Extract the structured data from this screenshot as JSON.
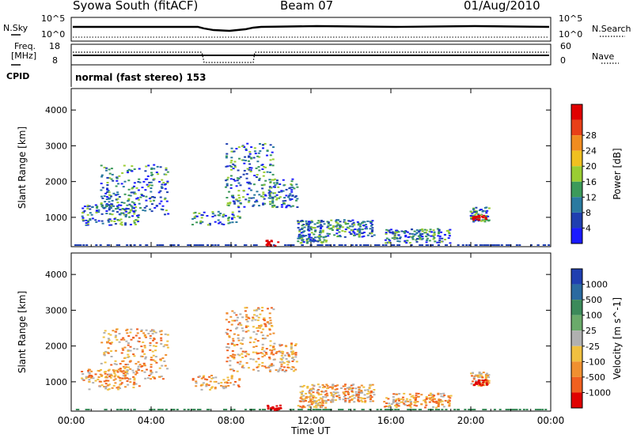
{
  "header": {
    "station": "Syowa South (fitACF)",
    "beam": "Beam 07",
    "date": "01/Aug/2010"
  },
  "status": {
    "nsky_label": "N.Sky",
    "nsearch_label": "N.Search",
    "freq_label_top": "Freq.",
    "freq_label_unit": "[MHz]",
    "nave_label": "Nave",
    "cpid_label": "CPID",
    "log_left_hi": "10^5",
    "log_left_lo": "10^0",
    "log_right_hi": "10^5",
    "log_right_lo": "10^0",
    "freq_hi": "18",
    "freq_lo": "8",
    "nave_hi": "60",
    "nave_lo": "0",
    "cpid_text": "normal (fast stereo) 153"
  },
  "chart_data": [
    {
      "type": "heatmap",
      "title": "Power",
      "ylabel": "Slant Range [km]",
      "xlabel": "Time UT",
      "x_ticks": [
        "00:00",
        "04:00",
        "08:00",
        "12:00",
        "16:00",
        "20:00",
        "00:00"
      ],
      "y_ticks": [
        "1000",
        "2000",
        "3000",
        "4000"
      ],
      "ylim": [
        180,
        4600
      ],
      "colorbar": {
        "label": "Power [dB]",
        "ticks": [
          "4",
          "8",
          "12",
          "16",
          "20",
          "24",
          "28"
        ],
        "colors": [
          "#1a1aff",
          "#1f3fb0",
          "#2a7aa0",
          "#3c9a5a",
          "#9acd32",
          "#f0c020",
          "#f08c20",
          "#e84018",
          "#e00000"
        ]
      }
    },
    {
      "type": "heatmap",
      "title": "Velocity",
      "ylabel": "Slant Range [km]",
      "xlabel": "Time UT",
      "x_ticks": [
        "00:00",
        "04:00",
        "08:00",
        "12:00",
        "16:00",
        "20:00",
        "00:00"
      ],
      "y_ticks": [
        "1000",
        "2000",
        "3000",
        "4000"
      ],
      "ylim": [
        180,
        4600
      ],
      "colorbar": {
        "label": "Velocity [m s^-1]",
        "ticks": [
          "1000",
          "500",
          "100",
          "25",
          "-25",
          "-100",
          "-500",
          "-1000"
        ],
        "colors": [
          "#1f3fb0",
          "#2a6aa0",
          "#3c8a5a",
          "#6aaa6a",
          "#b0b0b0",
          "#f0c040",
          "#f09030",
          "#f06020",
          "#e00000"
        ]
      }
    }
  ],
  "time_axis_label": "Time UT"
}
